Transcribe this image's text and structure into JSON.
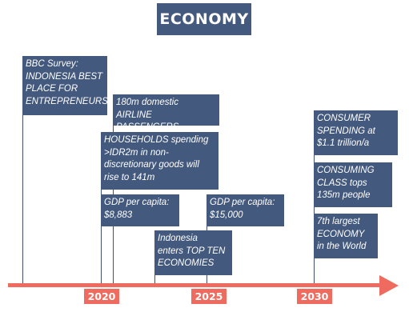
{
  "title": "ECONOMY",
  "colors": {
    "box": "#44597e",
    "axis": "#ef6b5f",
    "text": "#ffffff"
  },
  "events": [
    {
      "lines": [
        "BBC Survey:",
        "INDONESIA BEST",
        "PLACE FOR",
        "ENTREPRENEURS"
      ]
    },
    {
      "lines": [
        "180m domestic",
        "AIRLINE PASSENGERS"
      ]
    },
    {
      "lines": [
        "HOUSEHOLDS spending",
        ">IDR2m in non-",
        "discretionary goods will",
        "rise to 141m"
      ]
    },
    {
      "lines": [
        "GDP per capita:",
        "$8,883"
      ]
    },
    {
      "lines": [
        "Indonesia",
        "enters TOP TEN",
        "ECONOMIES"
      ]
    },
    {
      "lines": [
        "GDP per capita:",
        "$15,000"
      ]
    },
    {
      "lines": [
        "CONSUMER",
        "SPENDING at",
        "$1.1 trillion/a"
      ]
    },
    {
      "lines": [
        "CONSUMING",
        "CLASS tops",
        "135m people"
      ]
    },
    {
      "lines": [
        "7th largest",
        "ECONOMY",
        "in the World"
      ]
    }
  ],
  "years": [
    "2020",
    "2025",
    "2030"
  ]
}
